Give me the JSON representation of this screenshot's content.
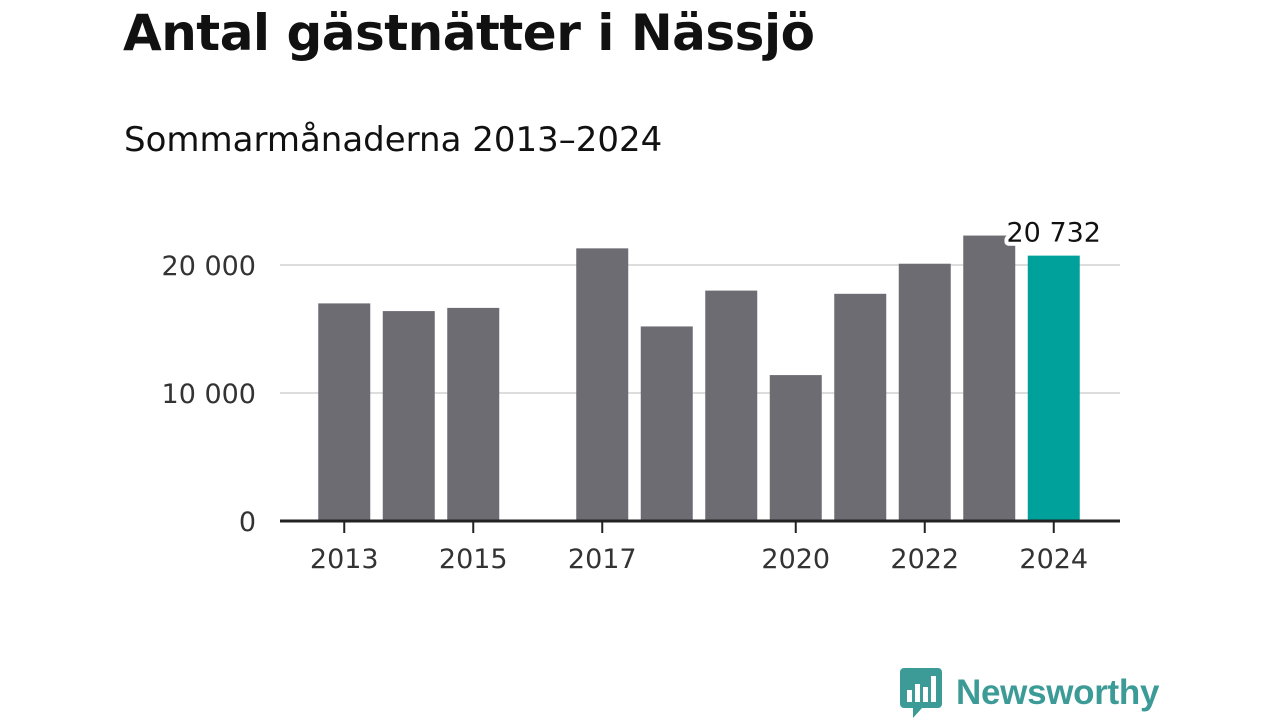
{
  "title": "Antal gästnätter i Nässjö",
  "subtitle": "Sommarmånaderna 2013–2024",
  "brand": {
    "name": "Newsworthy",
    "color": "#3c9b97",
    "icon": "bar-chart-speech-bubble-icon"
  },
  "colors": {
    "bar": "#6d6c73",
    "highlight": "#00a19a",
    "grid": "#dddddd",
    "axis": "#222222"
  },
  "chart_data": {
    "type": "bar",
    "categories": [
      "2013",
      "2014",
      "2015",
      "2016",
      "2017",
      "2018",
      "2019",
      "2020",
      "2021",
      "2022",
      "2023",
      "2024"
    ],
    "values": [
      17000,
      16400,
      16650,
      null,
      21300,
      15200,
      18000,
      11400,
      17750,
      20100,
      22300,
      20732
    ],
    "highlight_index": 11,
    "ylim": [
      0,
      25000
    ],
    "yticks": [
      0,
      10000,
      20000
    ],
    "ytick_labels": [
      "0",
      "10 000",
      "20 000"
    ],
    "xtick_labels": [
      "2013",
      "2015",
      "2017",
      "2020",
      "2022",
      "2024"
    ],
    "annotations": [
      {
        "category": "2024",
        "text": "20 732"
      }
    ],
    "grid": true,
    "xlabel": "",
    "ylabel": ""
  }
}
